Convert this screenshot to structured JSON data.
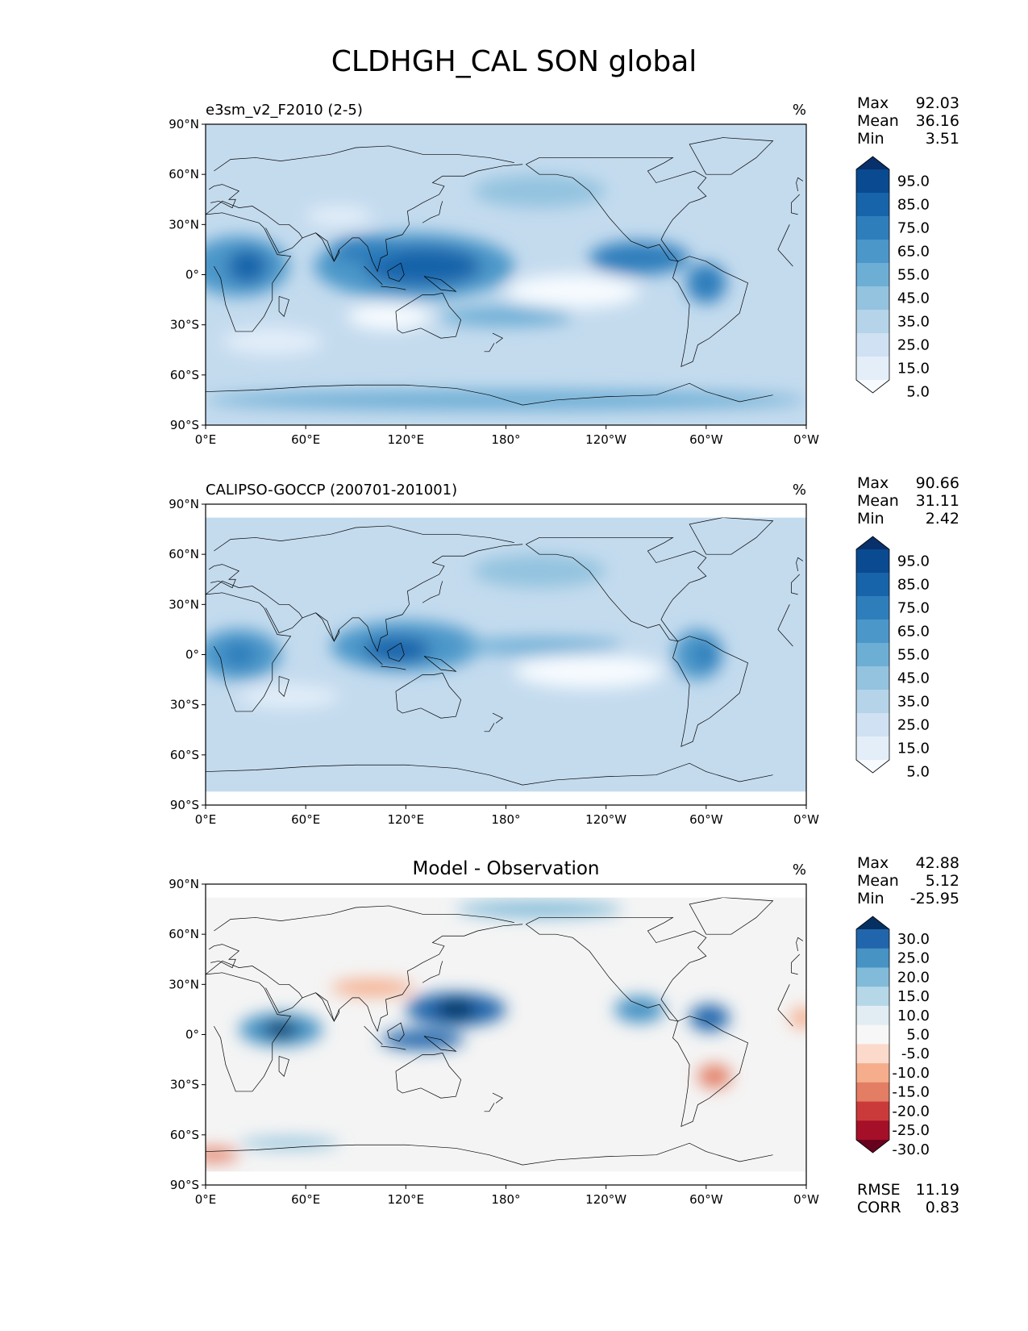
{
  "figure_title": "CLDHGH_CAL SON global",
  "units": "%",
  "axis": {
    "lat_labels": [
      "90°N",
      "60°N",
      "30°N",
      "0°",
      "30°S",
      "60°S",
      "90°S"
    ],
    "lon_labels": [
      "0°E",
      "60°E",
      "120°E",
      "180°",
      "120°W",
      "60°W",
      "0°W"
    ]
  },
  "panels": [
    {
      "label": "e3sm_v2_F2010 (2-5)",
      "centered_title": "",
      "stats": {
        "max_label": "Max",
        "max": "92.03",
        "mean_label": "Mean",
        "mean": "36.16",
        "min_label": "Min",
        "min": "3.51"
      },
      "colorbar": {
        "colors": [
          "#f7fbff",
          "#e3eef9",
          "#cfe1f2",
          "#b5d4e9",
          "#93c3df",
          "#6daed5",
          "#4b97c9",
          "#2f7ebc",
          "#1864aa",
          "#0a4a90",
          "#08306b"
        ],
        "labels": [
          "95.0",
          "85.0",
          "75.0",
          "65.0",
          "55.0",
          "45.0",
          "35.0",
          "25.0",
          "15.0",
          "5.0"
        ]
      },
      "field": {
        "base": "#c4dbee",
        "blobs": [
          {
            "lon": 20,
            "lat": 5,
            "rx": 30,
            "ry": 18,
            "color": "#4b97c9"
          },
          {
            "lon": 25,
            "lat": 5,
            "rx": 12,
            "ry": 10,
            "color": "#1864aa"
          },
          {
            "lon": 125,
            "lat": 5,
            "rx": 60,
            "ry": 20,
            "color": "#4b97c9"
          },
          {
            "lon": 130,
            "lat": 5,
            "rx": 35,
            "ry": 12,
            "color": "#1864aa"
          },
          {
            "lon": 95,
            "lat": 15,
            "rx": 20,
            "ry": 8,
            "color": "#2f7ebc"
          },
          {
            "lon": 260,
            "lat": 10,
            "rx": 30,
            "ry": 10,
            "color": "#2f7ebc"
          },
          {
            "lon": 300,
            "lat": -5,
            "rx": 12,
            "ry": 12,
            "color": "#2f7ebc"
          },
          {
            "lon": 220,
            "lat": -10,
            "rx": 40,
            "ry": 10,
            "color": "#f7fbff"
          },
          {
            "lon": 110,
            "lat": -25,
            "rx": 25,
            "ry": 8,
            "color": "#f7fbff"
          },
          {
            "lon": 80,
            "lat": 35,
            "rx": 20,
            "ry": 6,
            "color": "#e3eef9"
          },
          {
            "lon": 180,
            "lat": -25,
            "rx": 40,
            "ry": 6,
            "color": "#6daed5"
          },
          {
            "lon": 180,
            "lat": -75,
            "rx": 180,
            "ry": 6,
            "color": "#6daed5"
          },
          {
            "lon": 200,
            "lat": 50,
            "rx": 40,
            "ry": 10,
            "color": "#93c3df"
          },
          {
            "lon": 40,
            "lat": -40,
            "rx": 30,
            "ry": 8,
            "color": "#e3eef9"
          }
        ]
      }
    },
    {
      "label": "CALIPSO-GOCCP (200701-201001)",
      "centered_title": "",
      "stats": {
        "max_label": "Max",
        "max": "90.66",
        "mean_label": "Mean",
        "mean": "31.11",
        "min_label": "Min",
        "min": "2.42"
      },
      "colorbar": {
        "colors": [
          "#f7fbff",
          "#e3eef9",
          "#cfe1f2",
          "#b5d4e9",
          "#93c3df",
          "#6daed5",
          "#4b97c9",
          "#2f7ebc",
          "#1864aa",
          "#0a4a90",
          "#08306b"
        ],
        "labels": [
          "95.0",
          "85.0",
          "75.0",
          "65.0",
          "55.0",
          "45.0",
          "35.0",
          "25.0",
          "15.0",
          "5.0"
        ]
      },
      "field": {
        "base": "#c4dbee",
        "blobs": [
          {
            "lon": 20,
            "lat": 0,
            "rx": 25,
            "ry": 15,
            "color": "#4b97c9"
          },
          {
            "lon": 20,
            "lat": 0,
            "rx": 10,
            "ry": 8,
            "color": "#2f7ebc"
          },
          {
            "lon": 120,
            "lat": 5,
            "rx": 45,
            "ry": 15,
            "color": "#4b97c9"
          },
          {
            "lon": 115,
            "lat": 3,
            "rx": 20,
            "ry": 8,
            "color": "#1864aa"
          },
          {
            "lon": 200,
            "lat": 5,
            "rx": 50,
            "ry": 5,
            "color": "#6daed5"
          },
          {
            "lon": 295,
            "lat": 0,
            "rx": 15,
            "ry": 15,
            "color": "#4b97c9"
          },
          {
            "lon": 300,
            "lat": 0,
            "rx": 7,
            "ry": 8,
            "color": "#2f7ebc"
          },
          {
            "lon": 230,
            "lat": -10,
            "rx": 45,
            "ry": 10,
            "color": "#f7fbff"
          },
          {
            "lon": 50,
            "lat": -25,
            "rx": 30,
            "ry": 7,
            "color": "#e3eef9"
          },
          {
            "lon": 200,
            "lat": 50,
            "rx": 40,
            "ry": 10,
            "color": "#93c3df"
          }
        ]
      }
    },
    {
      "label": "",
      "centered_title": "Model - Observation",
      "stats": {
        "max_label": "Max",
        "max": "42.88",
        "mean_label": "Mean",
        "mean": "5.12",
        "min_label": "Min",
        "min": "-25.95"
      },
      "colorbar": {
        "colors": [
          "#67001f",
          "#a50f27",
          "#cb3a3a",
          "#e37d64",
          "#f5ad8c",
          "#fbdacb",
          "#f7f7f7",
          "#e1edf3",
          "#b6d7e8",
          "#82bbd9",
          "#4693c4",
          "#2166ac",
          "#053061"
        ],
        "labels": [
          "30.0",
          "25.0",
          "20.0",
          "15.0",
          "10.0",
          "5.0",
          "-5.0",
          "-10.0",
          "-15.0",
          "-20.0",
          "-25.0",
          "-30.0"
        ]
      },
      "metrics": {
        "rmse_label": "RMSE",
        "rmse": "11.19",
        "corr_label": "CORR",
        "corr": "0.83"
      },
      "field": {
        "base": "#f4f4f4",
        "blobs": [
          {
            "lon": 45,
            "lat": 3,
            "rx": 25,
            "ry": 10,
            "color": "#4693c4"
          },
          {
            "lon": 45,
            "lat": 3,
            "rx": 10,
            "ry": 5,
            "color": "#053061"
          },
          {
            "lon": 150,
            "lat": 15,
            "rx": 30,
            "ry": 10,
            "color": "#2166ac"
          },
          {
            "lon": 150,
            "lat": 15,
            "rx": 12,
            "ry": 6,
            "color": "#053061"
          },
          {
            "lon": 130,
            "lat": -3,
            "rx": 25,
            "ry": 6,
            "color": "#2166ac"
          },
          {
            "lon": 260,
            "lat": 15,
            "rx": 15,
            "ry": 8,
            "color": "#4693c4"
          },
          {
            "lon": 302,
            "lat": 10,
            "rx": 12,
            "ry": 8,
            "color": "#2166ac"
          },
          {
            "lon": 100,
            "lat": 28,
            "rx": 25,
            "ry": 5,
            "color": "#f5ad8c"
          },
          {
            "lon": 305,
            "lat": -25,
            "rx": 10,
            "ry": 7,
            "color": "#e37d64"
          },
          {
            "lon": 358,
            "lat": 10,
            "rx": 8,
            "ry": 6,
            "color": "#f5ad8c"
          },
          {
            "lon": 5,
            "lat": -72,
            "rx": 15,
            "ry": 4,
            "color": "#e37d64"
          },
          {
            "lon": 50,
            "lat": -65,
            "rx": 30,
            "ry": 3,
            "color": "#82bbd9"
          },
          {
            "lon": 200,
            "lat": 75,
            "rx": 50,
            "ry": 5,
            "color": "#82bbd9"
          }
        ]
      }
    }
  ]
}
